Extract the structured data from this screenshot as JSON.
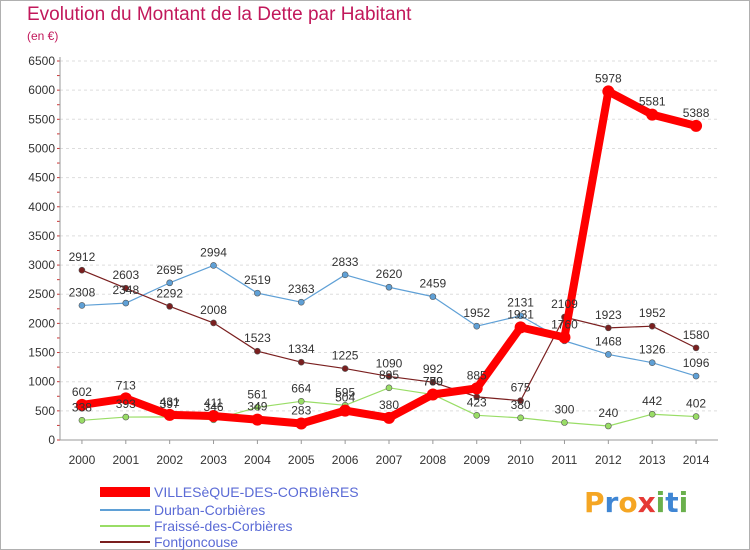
{
  "title": "Evolution du Montant de la Dette par Habitant",
  "subtitle": "(en €)",
  "logo": {
    "letters": [
      "P",
      "r",
      "o",
      "x",
      "i",
      "t",
      "i"
    ],
    "colors": [
      "#f5a623",
      "#3f86d4",
      "#f5a623",
      "#e53935",
      "#6ab04c",
      "#3f86d4",
      "#6ab04c"
    ]
  },
  "chart_data": {
    "type": "line",
    "x": [
      "2000",
      "2001",
      "2002",
      "2003",
      "2004",
      "2005",
      "2006",
      "2007",
      "2008",
      "2009",
      "2010",
      "2011",
      "2012",
      "2013",
      "2014"
    ],
    "y_ticks": [
      "0",
      "500",
      "1000",
      "1500",
      "2000",
      "2500",
      "3000",
      "3500",
      "4000",
      "4500",
      "5000",
      "5500",
      "6000",
      "6500"
    ],
    "ylim": [
      0,
      6500
    ],
    "grid": "horizontal",
    "legend_position": "bottom-left",
    "series": [
      {
        "name": "VILLESèQUE-DES-CORBIèRES",
        "color": "#ff0000",
        "values": [
          602,
          713,
          431,
          411,
          349,
          283,
          504,
          380,
          780,
          885,
          1931,
          1760,
          5978,
          5581,
          5388
        ],
        "labels": [
          "602",
          "713",
          "431",
          "411",
          "349",
          "283",
          "504",
          "380",
          "780",
          "885",
          "1931",
          "1760",
          "5978",
          "5581",
          "5388"
        ]
      },
      {
        "name": "Durban-Corbières",
        "color": "#5fa0d6",
        "values": [
          2308,
          2348,
          2695,
          2994,
          2519,
          2363,
          2833,
          2620,
          2459,
          1952,
          2131,
          1700,
          1468,
          1326,
          1096
        ],
        "labels": [
          "2308",
          "2348",
          "2695",
          "2994",
          "2519",
          "2363",
          "2833",
          "2620",
          "2459",
          "1952",
          "2131",
          "",
          "1468",
          "1326",
          "1096"
        ]
      },
      {
        "name": "Fraissé-des-Corbières",
        "color": "#99dd66",
        "values": [
          338,
          393,
          397,
          346,
          561,
          664,
          595,
          895,
          779,
          423,
          380,
          300,
          240,
          442,
          402
        ],
        "labels": [
          "338",
          "393",
          "397",
          "346",
          "561",
          "664",
          "595",
          "895",
          "779",
          "423",
          "380",
          "300",
          "240",
          "442",
          "402"
        ]
      },
      {
        "name": "Fontjoncouse",
        "color": "#7a1f1f",
        "values": [
          2912,
          2603,
          2292,
          2008,
          1523,
          1334,
          1225,
          1090,
          992,
          740,
          675,
          2109,
          1923,
          1952,
          1580
        ],
        "labels": [
          "2912",
          "2603",
          "2292",
          "2008",
          "1523",
          "1334",
          "1225",
          "1090",
          "992",
          "",
          "675",
          "2109",
          "1923",
          "1952",
          "1580"
        ]
      }
    ]
  }
}
